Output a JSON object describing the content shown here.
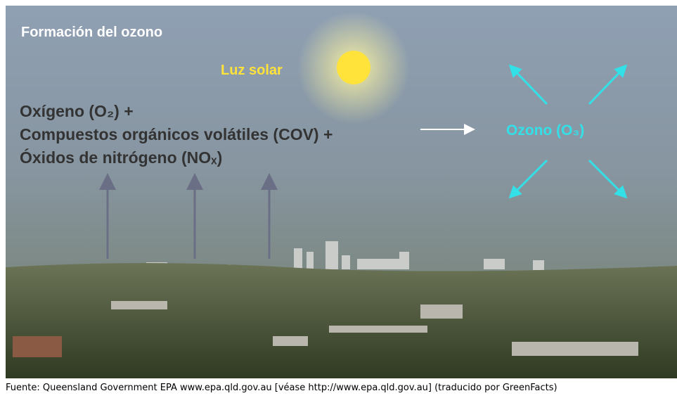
{
  "figure": {
    "title": "Formación del ozono",
    "sunlight": "Luz solar",
    "reactants": [
      "Oxígeno (O₂) +",
      "Compuestos orgánicos volátiles (COV) +",
      "Óxidos de nitrógeno (NOₓ)"
    ],
    "product": "Ozono (O₃)"
  },
  "caption": "Fuente: Queensland Government EPA www.epa.qld.gov.au [véase http://www.epa.qld.gov.au] (traducido por GreenFacts)"
}
